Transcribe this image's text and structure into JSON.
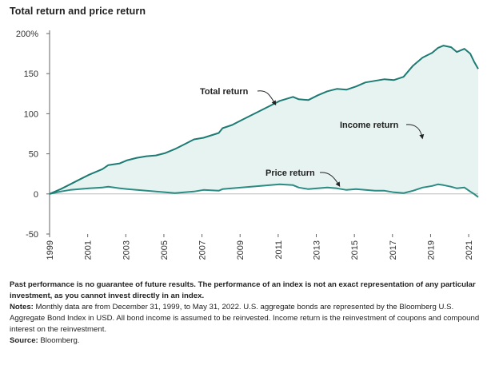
{
  "colors": {
    "total_line": "#1e7b73",
    "price_line": "#2a8c83",
    "area_fill": "#e6f3f1",
    "axis": "#666666",
    "zero_line": "#bbbbbb"
  },
  "chart_data": {
    "type": "area",
    "title": "Total return and price return",
    "y_axis": {
      "ticks": [
        200,
        150,
        100,
        50,
        0,
        -50
      ],
      "tick_labels": [
        "200%",
        "150",
        "100",
        "50",
        "0",
        "-50"
      ],
      "ylim": [
        -50,
        200
      ]
    },
    "x_axis": {
      "xlim": [
        1999.92,
        2022.42
      ],
      "ticks": [
        1999,
        2001,
        2003,
        2005,
        2007,
        2009,
        2011,
        2013,
        2015,
        2017,
        2019,
        2021
      ],
      "tick_labels": [
        "1999",
        "2001",
        "2003",
        "2005",
        "2007",
        "2009",
        "2011",
        "2013",
        "2015",
        "2017",
        "2019",
        "2021"
      ]
    },
    "series": [
      {
        "name": "Total return",
        "x": [
          1999.92,
          2000.5,
          2001.0,
          2001.5,
          2002.0,
          2002.7,
          2003.0,
          2003.6,
          2004.0,
          2004.5,
          2005.0,
          2005.5,
          2006.0,
          2006.5,
          2007.0,
          2007.5,
          2008.0,
          2008.8,
          2009.0,
          2009.5,
          2010.0,
          2010.5,
          2011.0,
          2011.5,
          2012.0,
          2012.7,
          2013.0,
          2013.5,
          2014.0,
          2014.5,
          2015.0,
          2015.5,
          2016.0,
          2016.5,
          2017.0,
          2017.5,
          2018.0,
          2018.5,
          2019.0,
          2019.5,
          2020.0,
          2020.3,
          2020.6,
          2021.0,
          2021.3,
          2021.7,
          2022.0,
          2022.2,
          2022.42
        ],
        "values": [
          0,
          6,
          12,
          18,
          24,
          31,
          36,
          38,
          42,
          45,
          47,
          48,
          51,
          56,
          62,
          68,
          70,
          76,
          82,
          86,
          92,
          98,
          104,
          110,
          116,
          121,
          118,
          117,
          123,
          128,
          131,
          130,
          134,
          139,
          141,
          143,
          142,
          146,
          160,
          170,
          176,
          182,
          185,
          183,
          177,
          181,
          175,
          165,
          156
        ]
      },
      {
        "name": "Price return",
        "x": [
          1999.92,
          2000.5,
          2001.0,
          2001.5,
          2002.0,
          2002.7,
          2003.0,
          2003.6,
          2004.0,
          2004.5,
          2005.0,
          2005.5,
          2006.0,
          2006.5,
          2007.0,
          2007.5,
          2008.0,
          2008.8,
          2009.0,
          2009.5,
          2010.0,
          2010.5,
          2011.0,
          2011.5,
          2012.0,
          2012.7,
          2013.0,
          2013.5,
          2014.0,
          2014.5,
          2015.0,
          2015.5,
          2016.0,
          2016.5,
          2017.0,
          2017.5,
          2018.0,
          2018.5,
          2019.0,
          2019.5,
          2020.0,
          2020.3,
          2020.6,
          2021.0,
          2021.3,
          2021.7,
          2022.0,
          2022.2,
          2022.42
        ],
        "values": [
          0,
          3,
          5,
          6,
          7,
          8,
          9,
          7,
          6,
          5,
          4,
          3,
          2,
          1,
          2,
          3,
          5,
          4,
          6,
          7,
          8,
          9,
          10,
          11,
          12,
          11,
          8,
          6,
          7,
          8,
          7,
          5,
          6,
          5,
          4,
          4,
          2,
          1,
          4,
          8,
          10,
          12,
          11,
          9,
          7,
          8,
          3,
          0,
          -4
        ]
      }
    ],
    "annotations": [
      {
        "label": "Total return"
      },
      {
        "label": "Income return"
      },
      {
        "label": "Price return"
      }
    ]
  },
  "footnotes": {
    "disclaimer": "Past performance is no guarantee of future results. The performance of an index is not an exact representation of any particular investment, as you cannot invest directly in an index.",
    "notes_label": "Notes:",
    "notes_text": " Monthly data are from December 31, 1999, to May 31, 2022. U.S. aggregate bonds are represented by the Bloomberg U.S. Aggregate Bond Index in USD. All bond income is assumed to be reinvested. Income return is the reinvestment of coupons and compound interest on the reinvestment.",
    "source_label": "Source:",
    "source_text": " Bloomberg."
  }
}
